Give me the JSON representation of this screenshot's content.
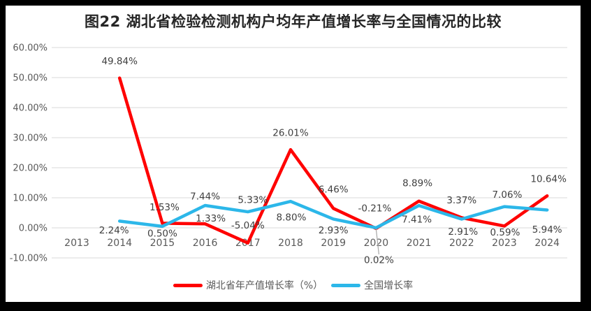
{
  "page": {
    "title": "图22 湖北省检验检测机构户均年产值增长率与全国情况的比较"
  },
  "chart_data": {
    "type": "line",
    "title": "图22 湖北省检验检测机构户均年产值增长率与全国情况的比较",
    "x": [
      "2013",
      "2014",
      "2015",
      "2016",
      "2017",
      "2018",
      "2019",
      "2020",
      "2021",
      "2022",
      "2023",
      "2024"
    ],
    "series": [
      {
        "name": "湖北省年产值增长率（%）",
        "color": "#FF0000",
        "values": [
          null,
          49.84,
          1.53,
          1.33,
          -5.04,
          26.01,
          6.46,
          -0.21,
          8.89,
          3.37,
          0.59,
          10.64
        ]
      },
      {
        "name": "全国增长率",
        "color": "#2CB7E9",
        "values": [
          null,
          2.24,
          0.5,
          7.44,
          5.33,
          8.8,
          2.93,
          0.02,
          7.41,
          2.91,
          7.06,
          5.94
        ]
      }
    ],
    "y_axis": {
      "min": -10,
      "max": 60,
      "step": 10,
      "tick_labels": [
        "60.00%",
        "50.00%",
        "40.00%",
        "30.00%",
        "20.00%",
        "10.00%",
        "0.00%",
        "-10.00%"
      ]
    },
    "data_labels": true,
    "grid": true,
    "legend_position": "bottom",
    "label_offsets": [
      [
        null,
        [
          0,
          -24
        ],
        [
          3,
          -23
        ],
        [
          8,
          -8
        ],
        [
          0,
          -25
        ],
        [
          0,
          -24
        ],
        [
          0,
          -27
        ],
        [
          -2,
          -29
        ],
        [
          -2,
          -26
        ],
        [
          0,
          -25
        ],
        [
          1,
          9
        ],
        [
          2,
          -24
        ]
      ],
      [
        null,
        [
          -8,
          13
        ],
        [
          0,
          10
        ],
        [
          0,
          -13
        ],
        [
          7,
          -17
        ],
        [
          1,
          23
        ],
        [
          0,
          16
        ],
        [
          4,
          46
        ],
        [
          -3,
          20
        ],
        [
          2,
          18
        ],
        [
          4,
          -17
        ],
        [
          0,
          28
        ]
      ]
    ],
    "leader_line": {
      "series": 1,
      "index": 7
    },
    "colors": {
      "grid": "#D9D9D9",
      "axis_text": "#595959",
      "data_label": "#404040",
      "leader": "#A6A6A6",
      "title": "#262626",
      "plot_background": "#FFFFFF",
      "page_background": "#000000"
    }
  }
}
